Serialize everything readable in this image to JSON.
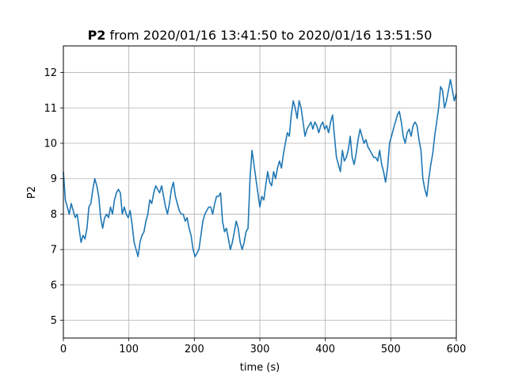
{
  "chart_data": {
    "type": "line",
    "title_bold": "P2",
    "title_rest": " from 2020/01/16 13:41:50 to 2020/01/16 13:51:50",
    "xlabel": "time (s)",
    "ylabel": "P2",
    "xlim": [
      0,
      600
    ],
    "ylim": [
      4.5,
      12.75
    ],
    "xticks": [
      0,
      100,
      200,
      300,
      400,
      500,
      600
    ],
    "yticks": [
      5,
      6,
      7,
      8,
      9,
      10,
      11,
      12
    ],
    "grid": true,
    "line_color": "#1f77b4",
    "series": [
      {
        "values": [
          [
            0,
            9.2
          ],
          [
            3,
            8.4
          ],
          [
            6,
            8.2
          ],
          [
            9,
            8.0
          ],
          [
            12,
            8.3
          ],
          [
            15,
            8.1
          ],
          [
            18,
            7.9
          ],
          [
            21,
            8.0
          ],
          [
            24,
            7.6
          ],
          [
            27,
            7.2
          ],
          [
            30,
            7.4
          ],
          [
            33,
            7.3
          ],
          [
            36,
            7.6
          ],
          [
            39,
            8.2
          ],
          [
            42,
            8.3
          ],
          [
            45,
            8.7
          ],
          [
            48,
            9.0
          ],
          [
            51,
            8.8
          ],
          [
            54,
            8.5
          ],
          [
            57,
            7.9
          ],
          [
            60,
            7.6
          ],
          [
            63,
            7.9
          ],
          [
            66,
            8.0
          ],
          [
            69,
            7.9
          ],
          [
            72,
            8.2
          ],
          [
            75,
            8.0
          ],
          [
            78,
            8.4
          ],
          [
            81,
            8.6
          ],
          [
            84,
            8.7
          ],
          [
            87,
            8.6
          ],
          [
            90,
            8.0
          ],
          [
            93,
            8.2
          ],
          [
            96,
            8.0
          ],
          [
            99,
            7.9
          ],
          [
            102,
            8.1
          ],
          [
            105,
            7.7
          ],
          [
            108,
            7.2
          ],
          [
            111,
            7.0
          ],
          [
            114,
            6.8
          ],
          [
            117,
            7.2
          ],
          [
            120,
            7.4
          ],
          [
            123,
            7.5
          ],
          [
            126,
            7.8
          ],
          [
            129,
            8.0
          ],
          [
            132,
            8.4
          ],
          [
            135,
            8.3
          ],
          [
            138,
            8.6
          ],
          [
            141,
            8.8
          ],
          [
            144,
            8.7
          ],
          [
            147,
            8.6
          ],
          [
            150,
            8.8
          ],
          [
            153,
            8.5
          ],
          [
            156,
            8.2
          ],
          [
            159,
            8.0
          ],
          [
            162,
            8.3
          ],
          [
            165,
            8.7
          ],
          [
            168,
            8.9
          ],
          [
            171,
            8.5
          ],
          [
            174,
            8.3
          ],
          [
            177,
            8.1
          ],
          [
            180,
            8.0
          ],
          [
            183,
            8.0
          ],
          [
            186,
            7.8
          ],
          [
            189,
            7.9
          ],
          [
            192,
            7.6
          ],
          [
            195,
            7.4
          ],
          [
            198,
            7.0
          ],
          [
            201,
            6.8
          ],
          [
            204,
            6.9
          ],
          [
            207,
            7.0
          ],
          [
            210,
            7.4
          ],
          [
            213,
            7.8
          ],
          [
            216,
            8.0
          ],
          [
            219,
            8.1
          ],
          [
            222,
            8.2
          ],
          [
            225,
            8.2
          ],
          [
            228,
            8.0
          ],
          [
            231,
            8.3
          ],
          [
            234,
            8.5
          ],
          [
            237,
            8.5
          ],
          [
            240,
            8.6
          ],
          [
            243,
            7.8
          ],
          [
            246,
            7.5
          ],
          [
            249,
            7.6
          ],
          [
            252,
            7.3
          ],
          [
            255,
            7.0
          ],
          [
            258,
            7.2
          ],
          [
            261,
            7.5
          ],
          [
            264,
            7.8
          ],
          [
            267,
            7.6
          ],
          [
            270,
            7.2
          ],
          [
            273,
            7.0
          ],
          [
            276,
            7.2
          ],
          [
            279,
            7.5
          ],
          [
            282,
            7.6
          ],
          [
            285,
            9.0
          ],
          [
            288,
            9.8
          ],
          [
            291,
            9.4
          ],
          [
            294,
            9.0
          ],
          [
            297,
            8.6
          ],
          [
            300,
            8.2
          ],
          [
            303,
            8.5
          ],
          [
            306,
            8.4
          ],
          [
            309,
            8.8
          ],
          [
            312,
            9.2
          ],
          [
            315,
            8.9
          ],
          [
            318,
            8.8
          ],
          [
            321,
            9.2
          ],
          [
            324,
            9.0
          ],
          [
            327,
            9.3
          ],
          [
            330,
            9.5
          ],
          [
            333,
            9.3
          ],
          [
            336,
            9.7
          ],
          [
            339,
            10.0
          ],
          [
            342,
            10.3
          ],
          [
            345,
            10.2
          ],
          [
            348,
            10.8
          ],
          [
            351,
            11.2
          ],
          [
            354,
            11.0
          ],
          [
            357,
            10.7
          ],
          [
            360,
            11.2
          ],
          [
            363,
            11.0
          ],
          [
            366,
            10.6
          ],
          [
            369,
            10.2
          ],
          [
            372,
            10.4
          ],
          [
            375,
            10.5
          ],
          [
            378,
            10.6
          ],
          [
            381,
            10.4
          ],
          [
            384,
            10.6
          ],
          [
            387,
            10.5
          ],
          [
            390,
            10.3
          ],
          [
            393,
            10.5
          ],
          [
            396,
            10.6
          ],
          [
            399,
            10.4
          ],
          [
            402,
            10.5
          ],
          [
            405,
            10.3
          ],
          [
            408,
            10.6
          ],
          [
            411,
            10.8
          ],
          [
            414,
            10.2
          ],
          [
            417,
            9.6
          ],
          [
            420,
            9.4
          ],
          [
            423,
            9.2
          ],
          [
            426,
            9.8
          ],
          [
            429,
            9.5
          ],
          [
            432,
            9.6
          ],
          [
            435,
            9.8
          ],
          [
            438,
            10.2
          ],
          [
            441,
            9.6
          ],
          [
            444,
            9.4
          ],
          [
            447,
            9.7
          ],
          [
            450,
            10.1
          ],
          [
            453,
            10.4
          ],
          [
            456,
            10.2
          ],
          [
            459,
            10.0
          ],
          [
            462,
            10.1
          ],
          [
            465,
            9.9
          ],
          [
            468,
            9.8
          ],
          [
            471,
            9.7
          ],
          [
            474,
            9.6
          ],
          [
            477,
            9.6
          ],
          [
            480,
            9.5
          ],
          [
            483,
            9.8
          ],
          [
            486,
            9.4
          ],
          [
            489,
            9.2
          ],
          [
            492,
            8.9
          ],
          [
            495,
            9.3
          ],
          [
            498,
            10.0
          ],
          [
            501,
            10.2
          ],
          [
            504,
            10.4
          ],
          [
            507,
            10.6
          ],
          [
            510,
            10.8
          ],
          [
            513,
            10.9
          ],
          [
            516,
            10.6
          ],
          [
            519,
            10.2
          ],
          [
            522,
            10.0
          ],
          [
            525,
            10.3
          ],
          [
            528,
            10.4
          ],
          [
            531,
            10.2
          ],
          [
            534,
            10.5
          ],
          [
            537,
            10.6
          ],
          [
            540,
            10.5
          ],
          [
            543,
            10.1
          ],
          [
            546,
            9.8
          ],
          [
            549,
            9.0
          ],
          [
            552,
            8.7
          ],
          [
            555,
            8.5
          ],
          [
            558,
            9.0
          ],
          [
            561,
            9.4
          ],
          [
            564,
            9.7
          ],
          [
            567,
            10.2
          ],
          [
            570,
            10.6
          ],
          [
            573,
            11.0
          ],
          [
            576,
            11.6
          ],
          [
            579,
            11.5
          ],
          [
            582,
            11.0
          ],
          [
            585,
            11.2
          ],
          [
            588,
            11.5
          ],
          [
            591,
            11.8
          ],
          [
            594,
            11.5
          ],
          [
            597,
            11.2
          ],
          [
            600,
            11.4
          ]
        ]
      }
    ]
  }
}
